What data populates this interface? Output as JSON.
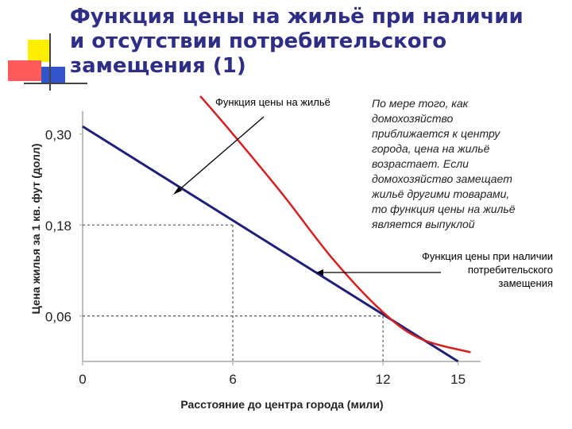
{
  "slide": {
    "title": "Функция цены на жильё при наличии\nи отсутствии потребительского\nзамещения (1)",
    "annotation": "По мере того, как\nдомохозяйство\nприближается к центру\nгорода, цена на жильё\nвозрастает. Если\nдомохозяйство замещает\nжильё другими товарами,\nто функция цены на жильё\nявляется выпуклой",
    "label_price_function": "Функция цены на жильё",
    "label_hedonic": "Функция цены при наличии\nпотребительского\nзамещения",
    "accent_colors": {
      "title": "#2e2e86",
      "line": "#1f1f7a",
      "curve": "#d42020",
      "deco_yellow": "#ffee00",
      "deco_red": "#ff5050",
      "deco_blue": "#3355cc"
    }
  },
  "chart_data": {
    "type": "line",
    "xlabel": "Расстояние до центра города (мили)",
    "ylabel": "Цена жилья за 1 кв. фут (долл)",
    "x_ticks": [
      "0",
      "6",
      "12",
      "15"
    ],
    "y_ticks": [
      "0,06",
      "0,18",
      "0,30"
    ],
    "xlim": [
      0,
      15.9
    ],
    "ylim": [
      0,
      0.33
    ],
    "grid": false,
    "series": [
      {
        "x": [
          0,
          15
        ],
        "y": [
          0.31,
          0.0
        ]
      },
      {
        "x": [
          4.7,
          6,
          8,
          10,
          12,
          13.5,
          15.5
        ],
        "y": [
          0.35,
          0.3,
          0.22,
          0.135,
          0.065,
          0.03,
          0.012
        ]
      }
    ],
    "reference_points": [
      {
        "x": 6,
        "y": 0.18
      },
      {
        "x": 12,
        "y": 0.06
      }
    ]
  }
}
